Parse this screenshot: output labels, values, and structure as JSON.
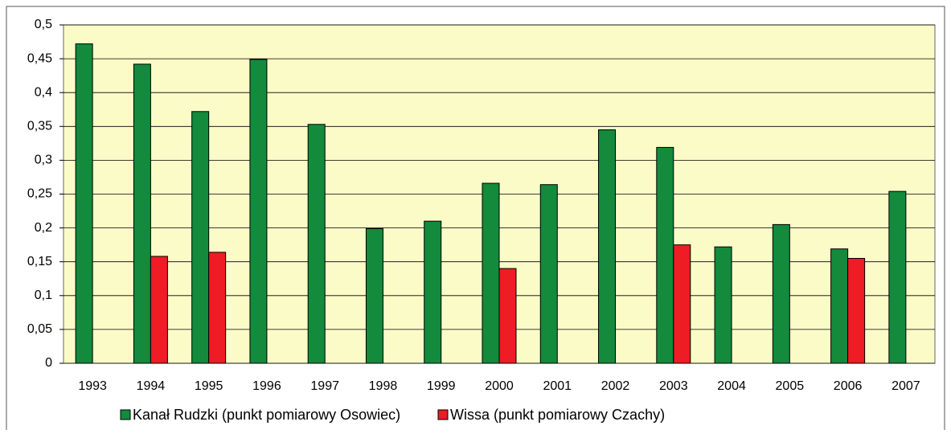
{
  "chart_data": {
    "type": "bar",
    "categories": [
      "1993",
      "1994",
      "1995",
      "1996",
      "1997",
      "1998",
      "1999",
      "2000",
      "2001",
      "2002",
      "2003",
      "2004",
      "2005",
      "2006",
      "2007"
    ],
    "series": [
      {
        "name": "Kanał Rudzki (punkt pomiarowy Osowiec)",
        "color": "#138a3c",
        "values": [
          0.472,
          0.442,
          0.372,
          0.449,
          0.353,
          0.199,
          0.21,
          0.266,
          0.264,
          0.345,
          0.319,
          0.172,
          0.205,
          0.169,
          0.254
        ]
      },
      {
        "name": "Wissa (punkt pomiarowy Czachy)",
        "color": "#ee1c24",
        "values": [
          null,
          0.158,
          0.164,
          null,
          null,
          null,
          null,
          0.14,
          null,
          null,
          0.175,
          null,
          null,
          0.155,
          null
        ]
      }
    ],
    "ylim": [
      0,
      0.5
    ],
    "yticks": [
      0,
      {
        "value": 0.05,
        "label": "0,05"
      },
      {
        "value": 0.1,
        "label": "0,1"
      },
      {
        "value": 0.15,
        "label": "0,15"
      },
      {
        "value": 0.2,
        "label": "0,2"
      },
      {
        "value": 0.25,
        "label": "0,25"
      },
      {
        "value": 0.3,
        "label": "0,3"
      },
      {
        "value": 0.35,
        "label": "0,35"
      },
      {
        "value": 0.4,
        "label": "0,4"
      },
      {
        "value": 0.45,
        "label": "0,45"
      },
      {
        "value": 0.5,
        "label": "0,5"
      }
    ],
    "grid": true,
    "legend": "bottom"
  }
}
